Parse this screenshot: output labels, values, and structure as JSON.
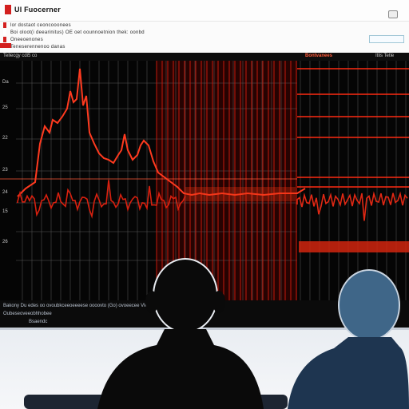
{
  "window": {
    "title": "Ul Fuocerner",
    "menu": [
      "lor dostaot ceoncooonees",
      "Boi oloot(i deearinitus) OE oet oounnoetnion thek: oonbd",
      "Oneeoenones",
      "Teneserennenoo danas"
    ]
  },
  "monitor": {
    "header_left": "Tellecgy cdi5 co",
    "header_right_accent": "Bontvanees",
    "header_right": "Itlis Tetle",
    "axis_ticks": [
      "Da",
      "25",
      "22",
      "23",
      "24",
      "15",
      "26"
    ],
    "footer": [
      "Bakony Du edes  oo ovoubkceeoeeeese  oooovto  (Go)  ovoeecee  Vleerbs",
      "Oubeseoveeobhhobee",
      "Bsaendc"
    ]
  },
  "colors": {
    "signal": "#ff3a1f",
    "signal_dark": "#c81e12",
    "screen": "#050505",
    "brand": "#d3201f"
  }
}
